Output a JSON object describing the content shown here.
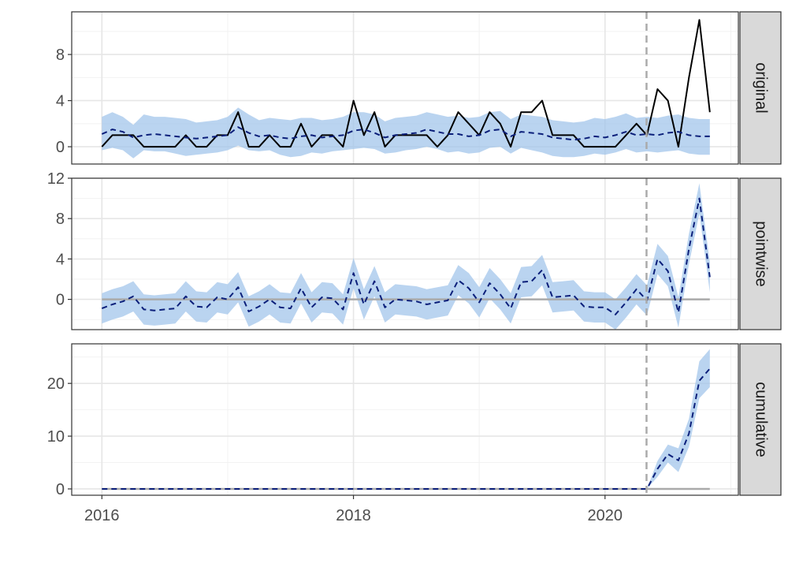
{
  "colors": {
    "band": "#9fc3ea",
    "pred": "#0b1f7a",
    "actual": "#000000",
    "zero": "#aaaaaa",
    "intervention": "#aaaaaa",
    "strip": "#d9d9d9",
    "grid_major": "#e6e6e6",
    "grid_minor": "#f2f2f2",
    "axis_text": "#4d4d4d",
    "strip_text": "#1a1a1a"
  },
  "chart_data": {
    "type": "line",
    "x_axis": {
      "ticks": [
        2016,
        2018,
        2020
      ],
      "tick_labels": [
        "2016",
        "2018",
        "2020"
      ],
      "range": [
        2015.76,
        2021.06
      ]
    },
    "intervention_x": 2020.33,
    "time": [
      2016.0,
      2016.083,
      2016.167,
      2016.25,
      2016.333,
      2016.417,
      2016.5,
      2016.583,
      2016.667,
      2016.75,
      2016.833,
      2016.917,
      2017.0,
      2017.083,
      2017.167,
      2017.25,
      2017.333,
      2017.417,
      2017.5,
      2017.583,
      2017.667,
      2017.75,
      2017.833,
      2017.917,
      2018.0,
      2018.083,
      2018.167,
      2018.25,
      2018.333,
      2018.417,
      2018.5,
      2018.583,
      2018.667,
      2018.75,
      2018.833,
      2018.917,
      2019.0,
      2019.083,
      2019.167,
      2019.25,
      2019.333,
      2019.417,
      2019.5,
      2019.583,
      2019.667,
      2019.75,
      2019.833,
      2019.917,
      2020.0,
      2020.083,
      2020.167,
      2020.25,
      2020.333,
      2020.417,
      2020.5,
      2020.583,
      2020.667,
      2020.75,
      2020.833
    ],
    "panels": [
      {
        "label": "original",
        "ylim": [
          -1.5,
          11.7
        ],
        "y_ticks": [
          0,
          4,
          8
        ],
        "actual": [
          0,
          1,
          1,
          1,
          0,
          0,
          0,
          0,
          1,
          0,
          0,
          1,
          1,
          3,
          0,
          0,
          1,
          0,
          0,
          2,
          0,
          1,
          1,
          0,
          4,
          1,
          3,
          0,
          1,
          1,
          1,
          1,
          0,
          1,
          3,
          2,
          1,
          3,
          2,
          0,
          3,
          3,
          4,
          1,
          1,
          1,
          0,
          0,
          0,
          0,
          1,
          2,
          1,
          5,
          4,
          0,
          6,
          11,
          3
        ],
        "predicted": [
          1.1,
          1.5,
          1.3,
          0.8,
          1.0,
          1.1,
          1.0,
          0.9,
          0.8,
          0.7,
          0.8,
          0.9,
          1.0,
          1.7,
          1.2,
          0.9,
          1.0,
          0.8,
          0.7,
          0.9,
          1.0,
          0.8,
          0.9,
          1.0,
          1.4,
          1.5,
          1.2,
          0.8,
          1.0,
          1.1,
          1.2,
          1.5,
          1.3,
          1.1,
          1.1,
          0.9,
          1.0,
          1.4,
          1.5,
          0.9,
          1.3,
          1.2,
          1.1,
          0.8,
          0.7,
          0.6,
          0.7,
          0.9,
          0.8,
          1.0,
          1.3,
          1.0,
          1.1,
          1.0,
          1.2,
          1.3,
          1.0,
          0.9,
          0.9
        ],
        "lower": [
          -0.3,
          -0.1,
          -0.3,
          -1.0,
          -0.3,
          -0.4,
          -0.4,
          -0.6,
          -0.8,
          -0.7,
          -0.6,
          -0.5,
          -0.3,
          0.1,
          -0.3,
          -0.4,
          -0.3,
          -0.7,
          -0.9,
          -0.8,
          -0.5,
          -0.6,
          -0.4,
          -0.3,
          -0.2,
          -0.1,
          -0.2,
          -0.6,
          -0.5,
          -0.3,
          -0.2,
          0.0,
          -0.2,
          -0.5,
          -0.4,
          -0.6,
          -0.5,
          -0.1,
          0.0,
          -0.6,
          -0.1,
          -0.3,
          -0.5,
          -0.8,
          -0.9,
          -0.9,
          -0.8,
          -0.6,
          -0.7,
          -0.5,
          -0.2,
          -0.5,
          -0.4,
          -0.5,
          -0.4,
          -0.3,
          -0.6,
          -0.7,
          -0.7
        ],
        "upper": [
          2.6,
          3.0,
          2.6,
          1.9,
          2.8,
          2.6,
          2.6,
          2.5,
          2.4,
          2.1,
          2.2,
          2.3,
          2.6,
          3.4,
          2.8,
          2.3,
          2.5,
          2.4,
          2.3,
          2.5,
          2.5,
          2.3,
          2.4,
          2.6,
          3.0,
          3.0,
          2.8,
          2.2,
          2.5,
          2.6,
          2.7,
          3.0,
          2.8,
          2.6,
          2.7,
          2.5,
          2.6,
          3.0,
          3.1,
          2.4,
          2.8,
          2.7,
          2.6,
          2.3,
          2.2,
          2.1,
          2.2,
          2.5,
          2.4,
          2.6,
          2.9,
          2.5,
          2.6,
          2.5,
          2.7,
          2.8,
          2.5,
          2.4,
          2.4
        ]
      },
      {
        "label": "pointwise",
        "ylim": [
          -3.0,
          12.0
        ],
        "y_ticks": [
          0,
          4,
          8,
          12
        ],
        "zero_line": true,
        "predicted": [
          -0.9,
          -0.5,
          -0.2,
          0.3,
          -1.0,
          -1.1,
          -1.0,
          -0.9,
          0.3,
          -0.7,
          -0.8,
          0.2,
          0.0,
          1.2,
          -1.2,
          -0.7,
          0.0,
          -0.8,
          -0.9,
          1.1,
          -0.8,
          0.2,
          0.1,
          -1.0,
          2.6,
          -0.5,
          1.8,
          -0.8,
          0.0,
          -0.1,
          -0.2,
          -0.5,
          -0.3,
          -0.1,
          1.9,
          1.1,
          -0.3,
          1.6,
          0.5,
          -0.9,
          1.7,
          1.8,
          2.9,
          0.2,
          0.3,
          0.4,
          -0.7,
          -0.8,
          -0.8,
          -1.5,
          -0.3,
          1.0,
          -0.1,
          4.0,
          2.8,
          -1.3,
          5.0,
          10.0,
          2.2
        ],
        "lower": [
          -2.4,
          -2.0,
          -1.7,
          -1.2,
          -2.5,
          -2.6,
          -2.5,
          -2.4,
          -1.2,
          -2.2,
          -2.3,
          -1.3,
          -1.5,
          -0.3,
          -2.7,
          -2.2,
          -1.5,
          -2.3,
          -2.4,
          -0.4,
          -2.3,
          -1.3,
          -1.4,
          -2.5,
          1.1,
          -2.0,
          0.3,
          -2.3,
          -1.5,
          -1.6,
          -1.7,
          -2.0,
          -1.8,
          -1.6,
          0.4,
          -0.4,
          -1.8,
          0.1,
          -1.0,
          -2.4,
          0.2,
          0.3,
          1.4,
          -1.3,
          -1.2,
          -1.1,
          -2.2,
          -2.3,
          -2.3,
          -3.0,
          -1.8,
          -0.5,
          -1.6,
          2.5,
          1.3,
          -2.8,
          3.5,
          8.5,
          0.7
        ],
        "upper": [
          0.6,
          1.0,
          1.3,
          1.8,
          0.5,
          0.4,
          0.5,
          0.6,
          1.8,
          0.8,
          0.7,
          1.7,
          1.5,
          2.7,
          0.3,
          0.8,
          1.5,
          0.7,
          0.6,
          2.6,
          0.7,
          1.7,
          1.6,
          0.5,
          4.1,
          1.0,
          3.3,
          0.7,
          1.5,
          1.4,
          1.3,
          1.0,
          1.2,
          1.4,
          3.4,
          2.6,
          1.2,
          3.1,
          2.0,
          0.6,
          3.2,
          3.3,
          4.4,
          1.7,
          1.8,
          1.9,
          0.8,
          0.7,
          0.7,
          0.0,
          1.2,
          2.5,
          1.4,
          5.5,
          4.3,
          0.2,
          6.5,
          11.5,
          3.7
        ]
      },
      {
        "label": "cumulative",
        "ylim": [
          -1.2,
          27.5
        ],
        "y_ticks": [
          0,
          10,
          20
        ],
        "zero_line": true,
        "predicted": [
          0,
          0,
          0,
          0,
          0,
          0,
          0,
          0,
          0,
          0,
          0,
          0,
          0,
          0,
          0,
          0,
          0,
          0,
          0,
          0,
          0,
          0,
          0,
          0,
          0,
          0,
          0,
          0,
          0,
          0,
          0,
          0,
          0,
          0,
          0,
          0,
          0,
          0,
          0,
          0,
          0,
          0,
          0,
          0,
          0,
          0,
          0,
          0,
          0,
          0,
          0,
          0,
          0,
          3.8,
          6.6,
          5.4,
          10.5,
          20.5,
          22.8
        ],
        "lower": [
          0,
          0,
          0,
          0,
          0,
          0,
          0,
          0,
          0,
          0,
          0,
          0,
          0,
          0,
          0,
          0,
          0,
          0,
          0,
          0,
          0,
          0,
          0,
          0,
          0,
          0,
          0,
          0,
          0,
          0,
          0,
          0,
          0,
          0,
          0,
          0,
          0,
          0,
          0,
          0,
          0,
          0,
          0,
          0,
          0,
          0,
          0,
          0,
          0,
          0,
          0,
          0,
          0,
          2.3,
          5.0,
          3.2,
          8.0,
          17.2,
          19.3
        ],
        "upper": [
          0,
          0,
          0,
          0,
          0,
          0,
          0,
          0,
          0,
          0,
          0,
          0,
          0,
          0,
          0,
          0,
          0,
          0,
          0,
          0,
          0,
          0,
          0,
          0,
          0,
          0,
          0,
          0,
          0,
          0,
          0,
          0,
          0,
          0,
          0,
          0,
          0,
          0,
          0,
          0,
          0,
          0,
          0,
          0,
          0,
          0,
          0,
          0,
          0,
          0,
          0,
          0,
          0,
          5.3,
          8.4,
          7.7,
          13.3,
          24.2,
          26.5
        ]
      }
    ]
  }
}
